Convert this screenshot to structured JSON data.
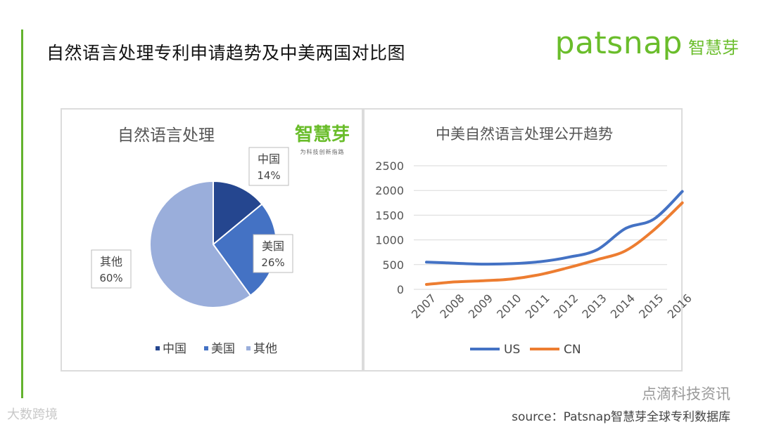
{
  "slide": {
    "title": "自然语言处理专利申请趋势及中美两国对比图",
    "brand_word": "patsnap",
    "brand_cn": "智慧芽",
    "source": "source：Patsnap智慧芽全球专利数据库",
    "watermark_right": "点滴科技资讯",
    "watermark_left": "大数跨境",
    "accent_color": "#63b32e"
  },
  "chart_data": [
    {
      "type": "pie",
      "title": "自然语言处理",
      "logo_text": "智慧芽",
      "logo_subtext": "为科技创新指路",
      "slices": [
        {
          "name": "中国",
          "value": 14,
          "label": "14%",
          "color": "#25468f"
        },
        {
          "name": "美国",
          "value": 26,
          "label": "26%",
          "color": "#4472c4"
        },
        {
          "name": "其他",
          "value": 60,
          "label": "60%",
          "color": "#9aaedb"
        }
      ],
      "legend": [
        "中国",
        "美国",
        "其他"
      ],
      "legend_position": "bottom"
    },
    {
      "type": "line",
      "title": "中美自然语言处理公开趋势",
      "x": [
        "2007",
        "2008",
        "2009",
        "2010",
        "2011",
        "2012",
        "2013",
        "2014",
        "2015",
        "2016"
      ],
      "series": [
        {
          "name": "US",
          "color": "#4472c4",
          "values": [
            550,
            530,
            510,
            520,
            560,
            650,
            800,
            1230,
            1420,
            1980
          ]
        },
        {
          "name": "CN",
          "color": "#ed7d31",
          "values": [
            100,
            150,
            175,
            210,
            300,
            440,
            600,
            780,
            1200,
            1750
          ]
        }
      ],
      "ylim": [
        0,
        2500
      ],
      "yticks": [
        "0",
        "500",
        "1000",
        "1500",
        "2000",
        "2500"
      ],
      "grid": true,
      "legend_position": "bottom"
    }
  ]
}
